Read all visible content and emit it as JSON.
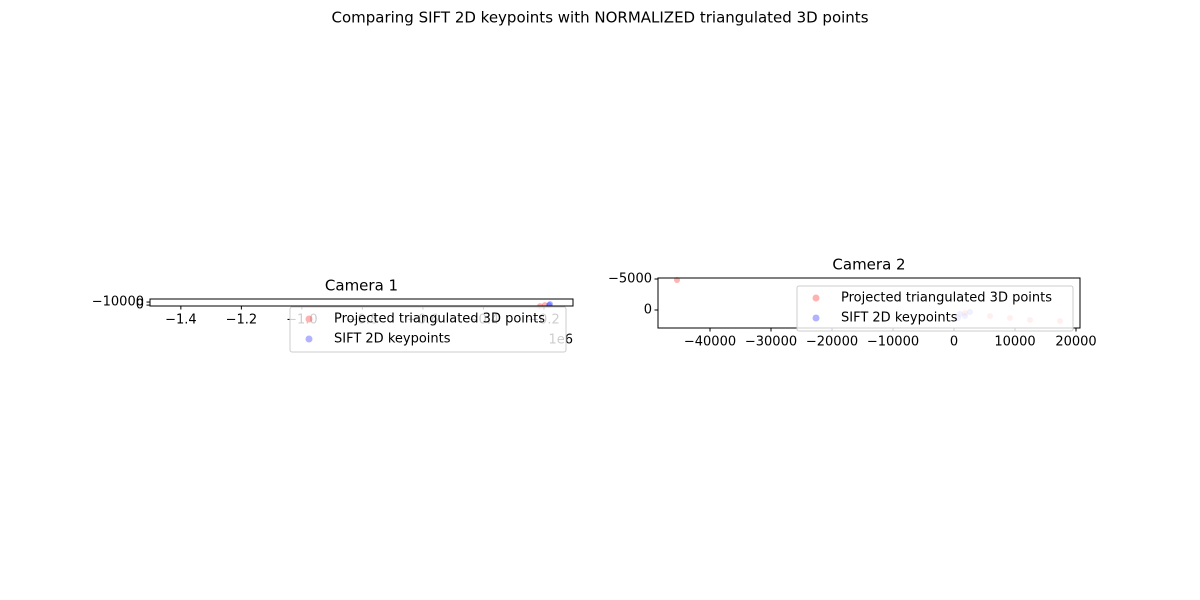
{
  "title": "Comparing SIFT 2D keypoints with NORMALIZED triangulated 3D points",
  "chart_data": [
    {
      "type": "scatter",
      "title": "Camera 1",
      "series": [
        {
          "name": "Projected triangulated 3D points",
          "color": "#ff0000",
          "x": [
            -213000,
            -197000
          ],
          "values": [
            3300,
            0
          ]
        },
        {
          "name": "SIFT 2D keypoints",
          "color": "#0000ff",
          "x": [
            -183000,
            -180000
          ],
          "values": [
            0,
            -3300
          ]
        }
      ],
      "xlim": [
        -1502000,
        -104000
      ],
      "xticks": [
        {
          "value": -1400000,
          "label": "−1.4"
        },
        {
          "value": -1200000,
          "label": "−1.2"
        },
        {
          "value": -1000000,
          "label": "−1.0"
        },
        {
          "value": -800000,
          "label": "−0.8"
        },
        {
          "value": -600000,
          "label": "−0.6"
        },
        {
          "value": -400000,
          "label": "−0.4"
        },
        {
          "value": -200000,
          "label": "−0.2"
        }
      ],
      "x_offset_text": "1e6",
      "ylim": [
        3000,
        -20000
      ],
      "yticks": [
        {
          "value": -10000,
          "label": "−10000"
        },
        0
      ],
      "legend": "upper right"
    },
    {
      "type": "scatter",
      "title": "Camera 2",
      "series": [
        {
          "name": "Projected triangulated 3D points",
          "color": "#ff0000",
          "x": [
            1803,
            5902,
            9180,
            12459,
            17377,
            -45410
          ],
          "values": [
            484,
            968,
            1290,
            1613,
            1774,
            -4839
          ]
        },
        {
          "name": "SIFT 2D keypoints",
          "color": "#0000ff",
          "x": [
            984,
            1803,
            656,
            2623
          ],
          "values": [
            645,
            968,
            1290,
            323
          ]
        }
      ],
      "xlim": [
        -48525,
        20656
      ],
      "xticks": [
        {
          "value": -40000,
          "label": "−40000"
        },
        {
          "value": -30000,
          "label": "−30000"
        },
        {
          "value": -20000,
          "label": "−20000"
        },
        {
          "value": -10000,
          "label": "−10000"
        },
        0,
        10000,
        20000
      ],
      "ylim": [
        2900,
        -5160
      ],
      "yticks": [
        {
          "value": -5000,
          "label": "−5000"
        },
        0
      ],
      "legend": "upper right"
    }
  ]
}
